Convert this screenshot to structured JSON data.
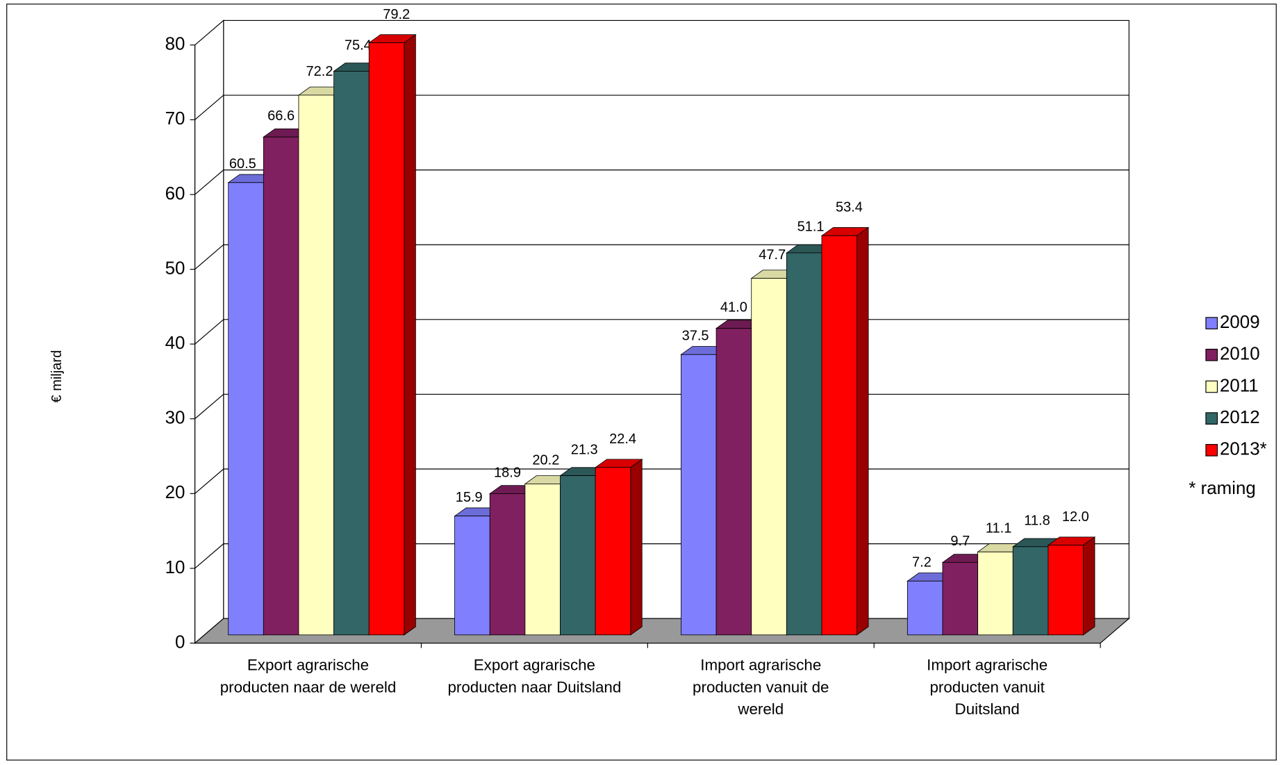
{
  "chart_data": {
    "type": "bar3d",
    "y_label": "€ miljard",
    "annotation": "* raming",
    "categories": [
      "Export agrarische producten naar de wereld",
      "Export agrarische producten naar Duitsland",
      "Import agrarische producten vanuit de wereld",
      "Import agrarische producten vanuit Duitsland"
    ],
    "series": [
      {
        "name": "2009",
        "color": "#8080ff",
        "values": [
          60.5,
          15.9,
          37.5,
          7.2
        ],
        "value_labels": [
          "60.5",
          "15.9",
          "37.5",
          "7.2"
        ]
      },
      {
        "name": "2010",
        "color": "#802060",
        "values": [
          66.6,
          18.9,
          41.0,
          9.7
        ],
        "value_labels": [
          "66.6",
          "18.9",
          "41.0",
          "9.7"
        ]
      },
      {
        "name": "2011",
        "color": "#ffffc0",
        "values": [
          72.2,
          20.2,
          47.7,
          11.1
        ],
        "value_labels": [
          "72.2",
          "20.2",
          "47.7",
          "11.1"
        ]
      },
      {
        "name": "2012",
        "color": "#336666",
        "values": [
          75.4,
          21.3,
          51.1,
          11.8
        ],
        "value_labels": [
          "75.4",
          "21.3",
          "51.1",
          "11.8"
        ]
      },
      {
        "name": "2013*",
        "color": "#ff0000",
        "values": [
          79.2,
          22.4,
          53.4,
          12.0
        ],
        "value_labels": [
          "79.2",
          "22.4",
          "53.4",
          "12.0"
        ]
      }
    ],
    "ylim": [
      0,
      80
    ],
    "yticks": [
      0,
      10,
      20,
      30,
      40,
      50,
      60,
      70,
      80
    ],
    "grid": true,
    "legend": "right"
  }
}
